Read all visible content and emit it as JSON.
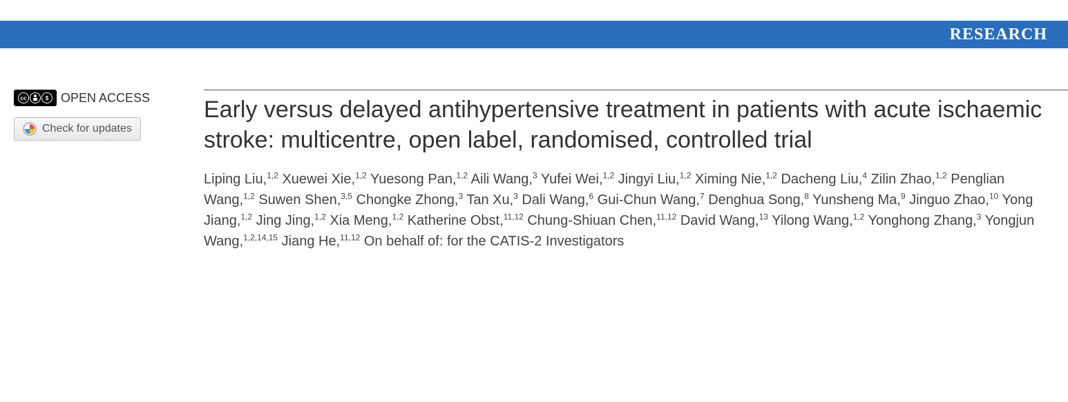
{
  "header": {
    "section_label": "RESEARCH",
    "bar_color": "#2a6ebb",
    "text_color": "#ffffff"
  },
  "sidebar": {
    "open_access_label": "OPEN ACCESS",
    "check_updates_label": "Check for updates",
    "cc_symbols": [
      "cc",
      "①",
      "$"
    ]
  },
  "article": {
    "title": "Early versus delayed antihypertensive treatment in patients with acute ischaemic stroke: multicentre, open label, randomised, controlled trial",
    "title_color": "#333333",
    "title_fontsize": 34,
    "authors": [
      {
        "name": "Liping Liu",
        "affiliations": "1,2"
      },
      {
        "name": "Xuewei Xie",
        "affiliations": "1,2"
      },
      {
        "name": "Yuesong Pan",
        "affiliations": "1,2"
      },
      {
        "name": "Aili Wang",
        "affiliations": "3"
      },
      {
        "name": "Yufei Wei",
        "affiliations": "1,2"
      },
      {
        "name": "Jingyi Liu",
        "affiliations": "1,2"
      },
      {
        "name": "Ximing Nie",
        "affiliations": "1,2"
      },
      {
        "name": "Dacheng Liu",
        "affiliations": "4"
      },
      {
        "name": "Zilin Zhao",
        "affiliations": "1,2"
      },
      {
        "name": "Penglian Wang",
        "affiliations": "1,2"
      },
      {
        "name": "Suwen Shen",
        "affiliations": "3,5"
      },
      {
        "name": "Chongke Zhong",
        "affiliations": "3"
      },
      {
        "name": "Tan Xu",
        "affiliations": "3"
      },
      {
        "name": "Dali Wang",
        "affiliations": "6"
      },
      {
        "name": "Gui-Chun Wang",
        "affiliations": "7"
      },
      {
        "name": "Denghua Song",
        "affiliations": "8"
      },
      {
        "name": "Yunsheng Ma",
        "affiliations": "9"
      },
      {
        "name": "Jinguo Zhao",
        "affiliations": "10"
      },
      {
        "name": "Yong Jiang",
        "affiliations": "1,2"
      },
      {
        "name": "Jing Jing",
        "affiliations": "1,2"
      },
      {
        "name": "Xia Meng",
        "affiliations": "1,2"
      },
      {
        "name": "Katherine Obst",
        "affiliations": "11,12"
      },
      {
        "name": "Chung-Shiuan Chen",
        "affiliations": "11,12"
      },
      {
        "name": "David Wang",
        "affiliations": "13"
      },
      {
        "name": "Yilong Wang",
        "affiliations": "1,2"
      },
      {
        "name": "Yonghong Zhang",
        "affiliations": "3"
      },
      {
        "name": "Yongjun Wang",
        "affiliations": "1,2,14,15"
      },
      {
        "name": "Jiang He",
        "affiliations": "11,12"
      }
    ],
    "authors_suffix": "On behalf of: for the CATIS-2 Investigators",
    "authors_color": "#444444",
    "authors_fontsize": 20
  },
  "colors": {
    "background": "#ffffff",
    "divider": "#555555"
  }
}
